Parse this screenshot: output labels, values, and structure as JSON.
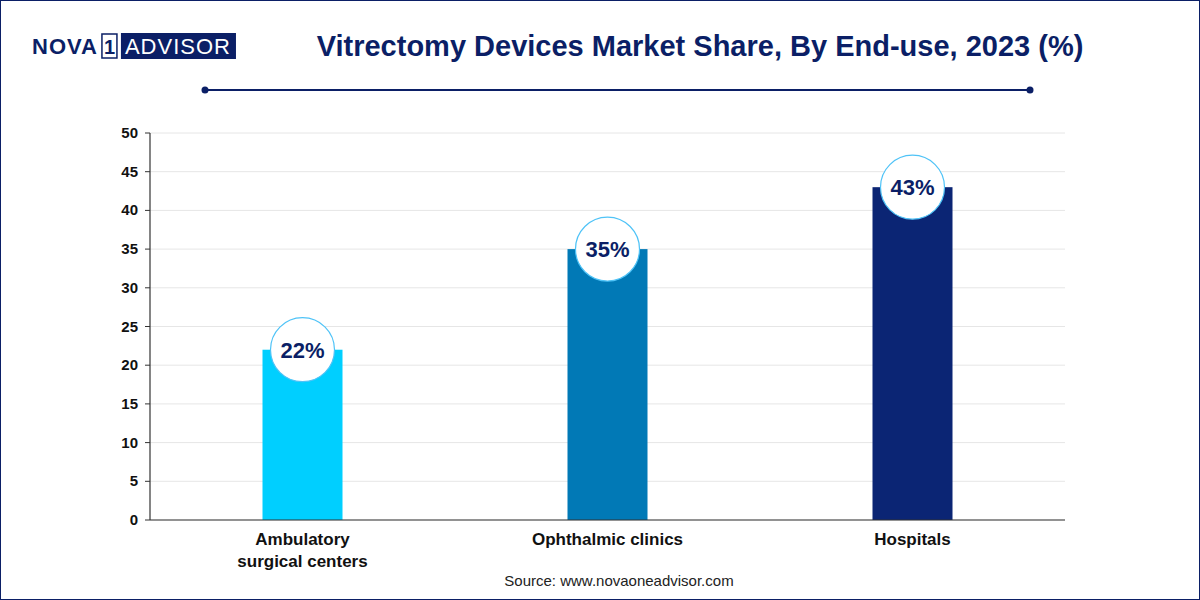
{
  "chart_data": {
    "type": "bar",
    "title": "Vitrectomy Devices Market Share, By End-use, 2023 (%)",
    "logo": [
      "NOVA",
      "1",
      "ADVISOR"
    ],
    "source": "Source: www.novaoneadvisor.com",
    "categories": [
      "Ambulatory surgical centers",
      "Ophthalmic clinics",
      "Hospitals"
    ],
    "values": [
      22,
      35,
      43
    ],
    "value_labels": [
      "22%",
      "35%",
      "43%"
    ],
    "colors": [
      "#00cfff",
      "#0179b6",
      "#0b2574"
    ],
    "ylim": [
      0,
      50
    ],
    "yticks": [
      0,
      5,
      10,
      15,
      20,
      25,
      30,
      35,
      40,
      45,
      50
    ],
    "grid": true,
    "data_labels": true
  }
}
